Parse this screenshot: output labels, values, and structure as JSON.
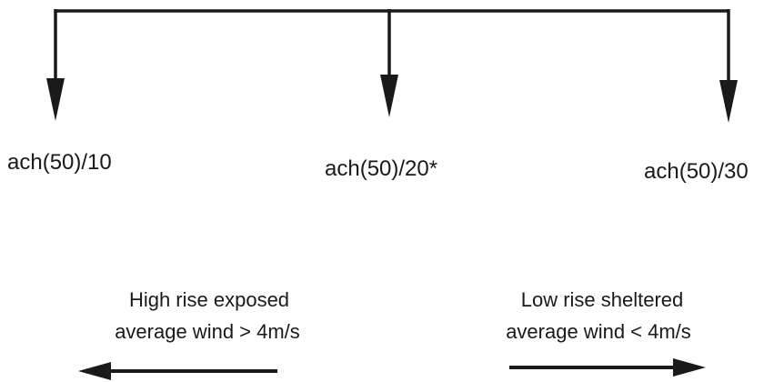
{
  "branches": [
    {
      "label": "ach(50)/10"
    },
    {
      "label": "ach(50)/20*"
    },
    {
      "label": "ach(50)/30"
    }
  ],
  "exposed": {
    "line1": "High rise exposed",
    "line2": "average wind > 4m/s"
  },
  "sheltered": {
    "line1": "Low rise sheltered",
    "line2": "average wind < 4m/s"
  },
  "colors": {
    "ink": "#1a1a1a",
    "background": "#ffffff"
  }
}
